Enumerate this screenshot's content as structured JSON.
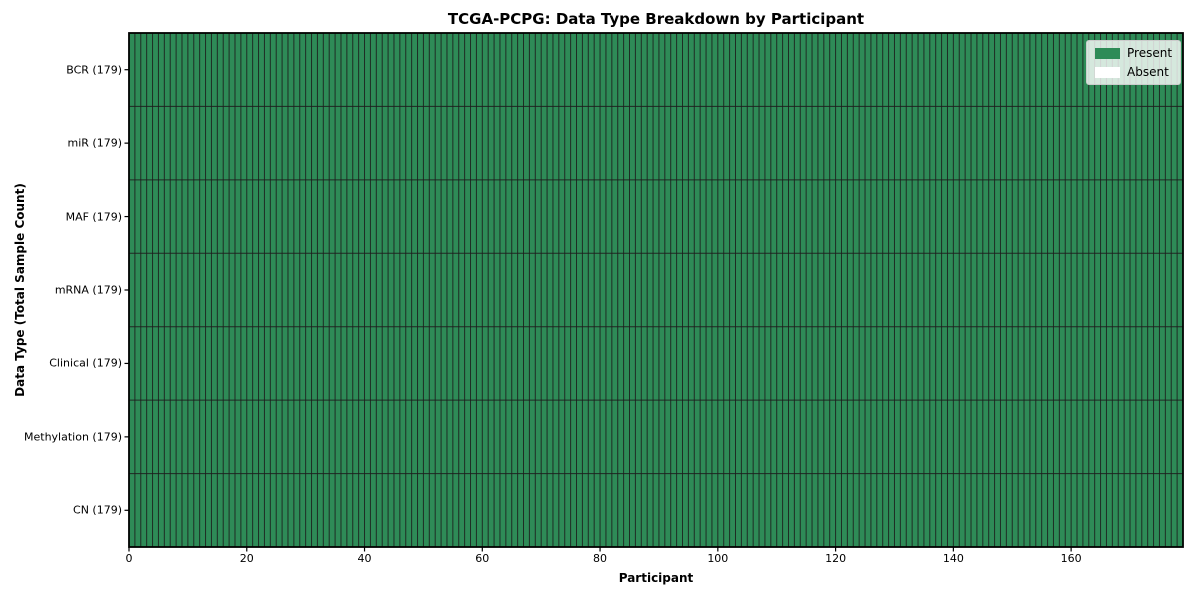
{
  "figure": {
    "background": "#ffffff"
  },
  "chart_data": {
    "type": "heatmap",
    "title": "TCGA-PCPG: Data Type Breakdown by Participant",
    "xlabel": "Participant",
    "ylabel": "Data Type (Total Sample Count)",
    "participants": 179,
    "xlim": [
      0,
      179
    ],
    "x_ticks": [
      0,
      20,
      40,
      60,
      80,
      100,
      120,
      140,
      160
    ],
    "categories": [
      "BCR (179)",
      "miR (179)",
      "MAF (179)",
      "mRNA (179)",
      "Clinical (179)",
      "Methylation (179)",
      "CN (179)"
    ],
    "rows": [
      {
        "label": "BCR (179)",
        "total_samples": 179,
        "present": 179,
        "absent": 0
      },
      {
        "label": "miR (179)",
        "total_samples": 179,
        "present": 179,
        "absent": 0
      },
      {
        "label": "MAF (179)",
        "total_samples": 179,
        "present": 179,
        "absent": 0
      },
      {
        "label": "mRNA (179)",
        "total_samples": 179,
        "present": 179,
        "absent": 0
      },
      {
        "label": "Clinical (179)",
        "total_samples": 179,
        "present": 179,
        "absent": 0
      },
      {
        "label": "Methylation (179)",
        "total_samples": 179,
        "present": 179,
        "absent": 0
      },
      {
        "label": "CN (179)",
        "total_samples": 179,
        "present": 179,
        "absent": 0
      }
    ],
    "legend": [
      {
        "label": "Present",
        "color": "#2e8b57"
      },
      {
        "label": "Absent",
        "color": "#ffffff"
      }
    ],
    "legend_position": "upper right",
    "grid": true,
    "colors": {
      "present": "#2e8b57",
      "absent": "#ffffff",
      "cell_edge": "#1c1c1c",
      "frame": "#000000",
      "tick": "#000000"
    }
  }
}
